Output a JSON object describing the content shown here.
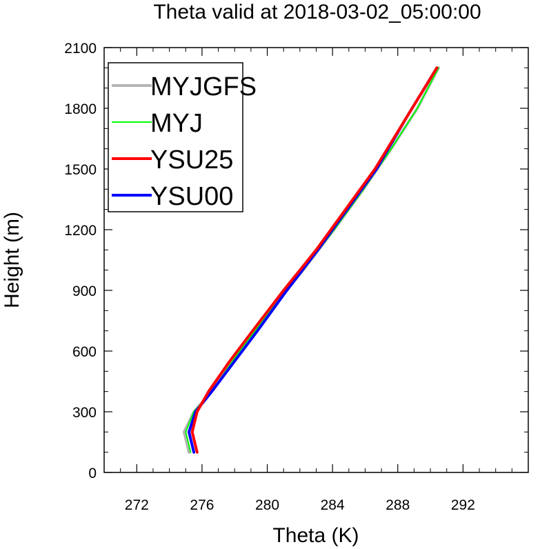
{
  "chart_data": {
    "type": "line",
    "title": "Theta valid at 2018-03-02_05:00:00",
    "xlabel": "Theta (K)",
    "ylabel": "Height (m)",
    "xlim": [
      270,
      296
    ],
    "ylim": [
      0,
      2100
    ],
    "xticks": [
      272,
      276,
      280,
      284,
      288,
      292
    ],
    "yticks": [
      0,
      300,
      600,
      900,
      1200,
      1500,
      1800,
      2100
    ],
    "grid": false,
    "legend_position": "top-left",
    "series": [
      {
        "name": "MYJGFS",
        "color": "#b4b4b4",
        "x": [
          275.2,
          274.9,
          275.5,
          276.6,
          278.3,
          280.2,
          282.2,
          284.1,
          285.9,
          287.6,
          289.2,
          290.5
        ],
        "y": [
          100,
          200,
          300,
          400,
          600,
          800,
          1000,
          1200,
          1400,
          1600,
          1800,
          2000
        ]
      },
      {
        "name": "MYJ",
        "color": "#00ff00",
        "x": [
          275.3,
          275.0,
          275.5,
          276.6,
          278.3,
          280.2,
          282.2,
          284.1,
          285.9,
          287.6,
          289.2,
          290.5
        ],
        "y": [
          100,
          200,
          300,
          400,
          600,
          800,
          1000,
          1200,
          1400,
          1600,
          1800,
          2000
        ]
      },
      {
        "name": "YSU25",
        "color": "#ff0000",
        "x": [
          275.7,
          275.4,
          275.7,
          276.4,
          277.7,
          279.1,
          281.0,
          283.0,
          284.8,
          286.6,
          288.5,
          290.4
        ],
        "y": [
          100,
          200,
          300,
          400,
          550,
          700,
          900,
          1100,
          1300,
          1500,
          1750,
          2000
        ]
      },
      {
        "name": "YSU00",
        "color": "#0000ff",
        "x": [
          275.5,
          275.2,
          275.6,
          276.6,
          278.0,
          279.4,
          281.2,
          283.1,
          284.9,
          286.7,
          288.5,
          290.4
        ],
        "y": [
          100,
          200,
          300,
          400,
          550,
          700,
          900,
          1100,
          1300,
          1500,
          1750,
          2000
        ]
      }
    ]
  }
}
